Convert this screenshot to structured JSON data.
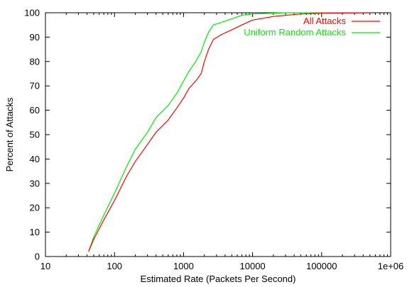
{
  "chart_data": {
    "type": "line",
    "title": "",
    "xlabel": "Estimated Rate (Packets Per Second)",
    "ylabel": "Percent of Attacks",
    "xscale": "log",
    "xlim": [
      10,
      1000000
    ],
    "ylim": [
      0,
      100
    ],
    "grid": false,
    "legend_position": "top-right",
    "x_ticks": [
      {
        "value": 10,
        "label": "10"
      },
      {
        "value": 100,
        "label": "100"
      },
      {
        "value": 1000,
        "label": "1000"
      },
      {
        "value": 10000,
        "label": "10000"
      },
      {
        "value": 100000,
        "label": "100000"
      },
      {
        "value": 1000000,
        "label": "1e+06"
      }
    ],
    "y_ticks": [
      {
        "value": 0,
        "label": "0"
      },
      {
        "value": 10,
        "label": "10"
      },
      {
        "value": 20,
        "label": "20"
      },
      {
        "value": 30,
        "label": "30"
      },
      {
        "value": 40,
        "label": "40"
      },
      {
        "value": 50,
        "label": "50"
      },
      {
        "value": 60,
        "label": "60"
      },
      {
        "value": 70,
        "label": "70"
      },
      {
        "value": 80,
        "label": "80"
      },
      {
        "value": 90,
        "label": "90"
      },
      {
        "value": 100,
        "label": "100"
      }
    ],
    "series": [
      {
        "name": "All Attacks",
        "color": "#ff0000",
        "points": [
          [
            42,
            2
          ],
          [
            50,
            7
          ],
          [
            70,
            15
          ],
          [
            100,
            23
          ],
          [
            150,
            33
          ],
          [
            200,
            39
          ],
          [
            300,
            46
          ],
          [
            400,
            51
          ],
          [
            600,
            56
          ],
          [
            800,
            61
          ],
          [
            1000,
            65
          ],
          [
            1200,
            69
          ],
          [
            1500,
            72
          ],
          [
            1800,
            75
          ],
          [
            2000,
            80
          ],
          [
            2300,
            85
          ],
          [
            2700,
            89
          ],
          [
            3500,
            91
          ],
          [
            5000,
            93
          ],
          [
            7000,
            95
          ],
          [
            10000,
            97
          ],
          [
            20000,
            98.5
          ],
          [
            50000,
            99.5
          ],
          [
            100000,
            99.8
          ],
          [
            500000,
            100
          ]
        ]
      },
      {
        "name": "Uniform Random Attacks",
        "color": "#00ee00",
        "points": [
          [
            42,
            2
          ],
          [
            50,
            8
          ],
          [
            70,
            17
          ],
          [
            100,
            26
          ],
          [
            150,
            37
          ],
          [
            200,
            44
          ],
          [
            300,
            51
          ],
          [
            400,
            57
          ],
          [
            600,
            62
          ],
          [
            800,
            67
          ],
          [
            1000,
            72
          ],
          [
            1200,
            76
          ],
          [
            1500,
            80
          ],
          [
            1800,
            84
          ],
          [
            2000,
            88
          ],
          [
            2300,
            92
          ],
          [
            2700,
            95
          ],
          [
            3500,
            96
          ],
          [
            5000,
            97.5
          ],
          [
            7000,
            99
          ],
          [
            10000,
            99.5
          ],
          [
            30000,
            100
          ],
          [
            500000,
            100
          ]
        ]
      }
    ]
  }
}
